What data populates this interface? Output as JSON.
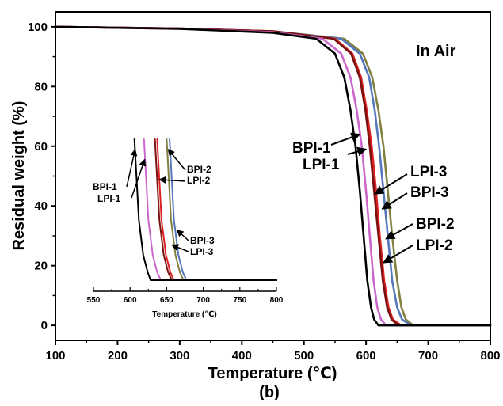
{
  "figure": {
    "panel_label": "(b)",
    "atmosphere_label": "In Air"
  },
  "chart_data": [
    {
      "type": "line",
      "title": "",
      "xlabel": "Temperature (℃)",
      "ylabel": "Residual weight (%)",
      "xlim": [
        100,
        800
      ],
      "ylim": [
        -5,
        105
      ],
      "xticks": [
        100,
        200,
        300,
        400,
        500,
        600,
        700,
        800
      ],
      "yticks": [
        0,
        20,
        40,
        60,
        80,
        100
      ],
      "grid": false,
      "series": [
        {
          "name": "BPI-1",
          "color": "#000000",
          "x": [
            100,
            300,
            450,
            520,
            550,
            565,
            575,
            583,
            590,
            596,
            602,
            608,
            613,
            620,
            800
          ],
          "y": [
            100,
            99.3,
            98.0,
            96.0,
            91,
            83,
            72,
            60,
            45,
            30,
            15,
            6,
            2,
            0,
            0
          ]
        },
        {
          "name": "LPI-1",
          "color": "#cc66cc",
          "x": [
            100,
            300,
            450,
            530,
            560,
            575,
            585,
            593,
            600,
            606,
            612,
            618,
            624,
            632,
            800
          ],
          "y": [
            100,
            99.3,
            98.2,
            96.0,
            91,
            83,
            72,
            60,
            45,
            30,
            15,
            6,
            2,
            0,
            0
          ]
        },
        {
          "name": "BPI-2",
          "color": "#5577bb",
          "x": [
            100,
            300,
            450,
            560,
            590,
            605,
            614,
            621,
            628,
            635,
            642,
            650,
            658,
            672,
            800
          ],
          "y": [
            100,
            99.4,
            98.5,
            96.0,
            91,
            83,
            72,
            60,
            45,
            30,
            15,
            6,
            2,
            0,
            0
          ]
        },
        {
          "name": "LPI-2",
          "color": "#808040",
          "x": [
            100,
            300,
            450,
            565,
            595,
            610,
            620,
            628,
            635,
            642,
            650,
            657,
            664,
            676,
            800
          ],
          "y": [
            100,
            99.4,
            98.5,
            96.0,
            91,
            83,
            72,
            60,
            45,
            30,
            15,
            6,
            2,
            0,
            0
          ]
        },
        {
          "name": "BPI-3",
          "color": "#dd2222",
          "x": [
            100,
            300,
            450,
            550,
            578,
            592,
            601,
            609,
            616,
            622,
            629,
            636,
            643,
            656,
            800
          ],
          "y": [
            100,
            99.4,
            98.5,
            96.0,
            91,
            83,
            72,
            60,
            45,
            30,
            15,
            6,
            2,
            0,
            0
          ]
        },
        {
          "name": "LPI-3",
          "color": "#7a1010",
          "x": [
            100,
            300,
            450,
            548,
            576,
            590,
            599,
            606,
            613,
            620,
            627,
            634,
            641,
            652,
            800
          ],
          "y": [
            100,
            99.4,
            98.5,
            96.0,
            91,
            83,
            72,
            60,
            45,
            30,
            15,
            6,
            2,
            0,
            0
          ]
        }
      ],
      "annotations": [
        {
          "text": "BPI-1",
          "target": [
            590,
            64
          ]
        },
        {
          "text": "LPI-1",
          "target": [
            600,
            59
          ]
        },
        {
          "text": "LPI-3",
          "target": [
            614,
            44
          ]
        },
        {
          "text": "BPI-3",
          "target": [
            626,
            39
          ]
        },
        {
          "text": "BPI-2",
          "target": [
            632,
            29
          ]
        },
        {
          "text": "LPI-2",
          "target": [
            628,
            21
          ]
        }
      ]
    },
    {
      "type": "line",
      "title": "",
      "xlabel": "Temperature (℃)",
      "ylabel": "",
      "xlim": [
        550,
        800
      ],
      "ylim": [
        16,
        30
      ],
      "xticks": [
        550,
        600,
        650,
        700,
        750,
        800
      ],
      "grid": false,
      "series": [
        {
          "name": "BPI-1",
          "color": "#000000",
          "x": [
            606,
            612,
            618,
            624,
            628,
            800
          ],
          "y": [
            30,
            22,
            18.5,
            16.8,
            16,
            16
          ]
        },
        {
          "name": "LPI-1",
          "color": "#cc66cc",
          "x": [
            619,
            625,
            631,
            637,
            642,
            800
          ],
          "y": [
            30,
            22,
            18.5,
            16.8,
            16,
            16
          ]
        },
        {
          "name": "BPI-2",
          "color": "#5577bb",
          "x": [
            654,
            660,
            666,
            672,
            677,
            800
          ],
          "y": [
            30,
            22,
            18.5,
            16.8,
            16,
            16
          ]
        },
        {
          "name": "LPI-2",
          "color": "#808040",
          "x": [
            650,
            656,
            662,
            668,
            673,
            800
          ],
          "y": [
            30,
            22,
            18.5,
            16.8,
            16,
            16
          ]
        },
        {
          "name": "BPI-3",
          "color": "#dd2222",
          "x": [
            637,
            643,
            649,
            655,
            660,
            800
          ],
          "y": [
            30,
            22,
            18.5,
            16.8,
            16,
            16
          ]
        },
        {
          "name": "LPI-3",
          "color": "#7a1010",
          "x": [
            634,
            640,
            646,
            652,
            657,
            800
          ],
          "y": [
            30,
            22,
            18.5,
            16.8,
            16,
            16
          ]
        }
      ],
      "annotations": [
        {
          "text": "BPI-1",
          "target": [
            607,
            29
          ]
        },
        {
          "text": "LPI-1",
          "target": [
            620,
            28
          ]
        },
        {
          "text": "BPI-2",
          "target": [
            652,
            29
          ]
        },
        {
          "text": "LPI-2",
          "target": [
            640,
            26
          ]
        },
        {
          "text": "BPI-3",
          "target": [
            664,
            21
          ]
        },
        {
          "text": "LPI-3",
          "target": [
            657,
            19.5
          ]
        }
      ]
    }
  ]
}
